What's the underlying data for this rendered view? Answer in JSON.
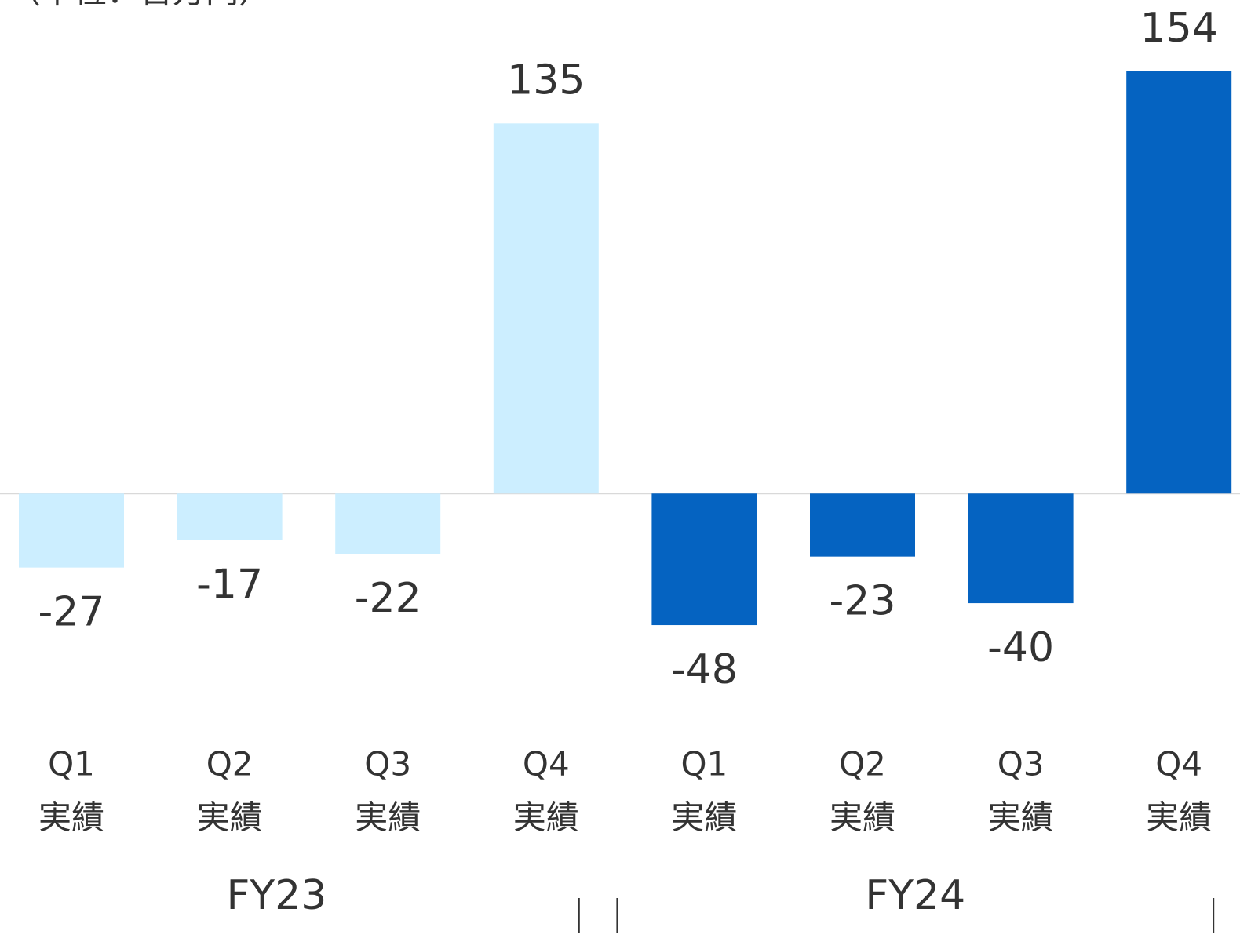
{
  "chart_data": {
    "type": "bar",
    "subtitle": "（単位：百万円）",
    "categories": [
      [
        "Q1",
        "実績"
      ],
      [
        "Q2",
        "実績"
      ],
      [
        "Q3",
        "実績"
      ],
      [
        "Q4",
        "実績"
      ]
    ],
    "series": [
      {
        "name": "FY23",
        "color": "#cceeff",
        "values": [
          -27,
          -17,
          -22,
          135
        ]
      },
      {
        "name": "FY24",
        "color": "#0563c1",
        "values": [
          -48,
          -23,
          -40,
          154
        ]
      }
    ],
    "ylim": [
      -60,
      180
    ]
  }
}
